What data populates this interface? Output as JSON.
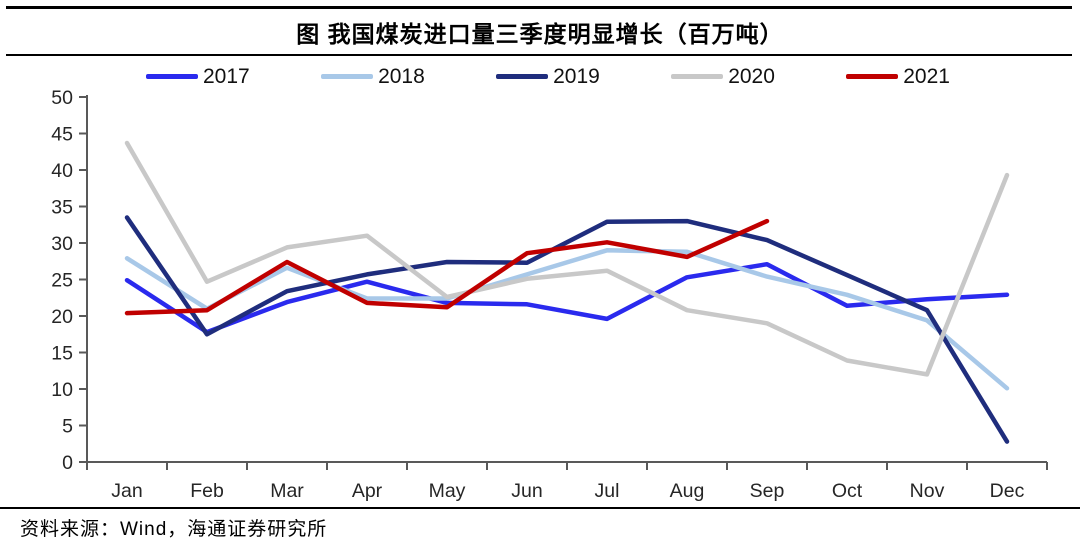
{
  "title": "图 我国煤炭进口量三季度明显增长（百万吨）",
  "footer": "资料来源：Wind，海通证券研究所",
  "chart_data": {
    "type": "line",
    "title": "图 我国煤炭进口量三季度明显增长（百万吨）",
    "xlabel": "",
    "ylabel": "",
    "ylim": [
      0,
      50
    ],
    "y_ticks": [
      0,
      5,
      10,
      15,
      20,
      25,
      30,
      35,
      40,
      45,
      50
    ],
    "categories": [
      "Jan",
      "Feb",
      "Mar",
      "Apr",
      "May",
      "Jun",
      "Jul",
      "Aug",
      "Sep",
      "Oct",
      "Nov",
      "Dec"
    ],
    "grid": false,
    "legend_position": "top",
    "axis_color": "#595959",
    "label_color": "#262626",
    "series": [
      {
        "name": "2017",
        "color": "#2a2aee",
        "values": [
          24.9,
          17.8,
          21.9,
          24.7,
          21.8,
          21.6,
          19.6,
          25.3,
          27.1,
          21.4,
          22.3,
          22.9
        ]
      },
      {
        "name": "2018",
        "color": "#a8c8e8",
        "values": [
          27.9,
          21.0,
          26.6,
          22.4,
          22.4,
          25.7,
          29.0,
          28.8,
          25.4,
          22.9,
          19.4,
          10.1
        ]
      },
      {
        "name": "2019",
        "color": "#1f2d7d",
        "values": [
          33.5,
          17.5,
          23.4,
          25.7,
          27.4,
          27.3,
          32.9,
          33.0,
          30.4,
          25.6,
          20.8,
          2.8
        ]
      },
      {
        "name": "2020",
        "color": "#c8c8c8",
        "values": [
          43.7,
          24.7,
          29.4,
          31.0,
          22.6,
          25.1,
          26.2,
          20.8,
          19.0,
          13.9,
          12.0,
          39.3
        ]
      },
      {
        "name": "2021",
        "color": "#c00000",
        "values": [
          20.4,
          20.8,
          27.4,
          21.8,
          21.2,
          28.6,
          30.1,
          28.1,
          33.0,
          null,
          null,
          null
        ]
      }
    ]
  }
}
